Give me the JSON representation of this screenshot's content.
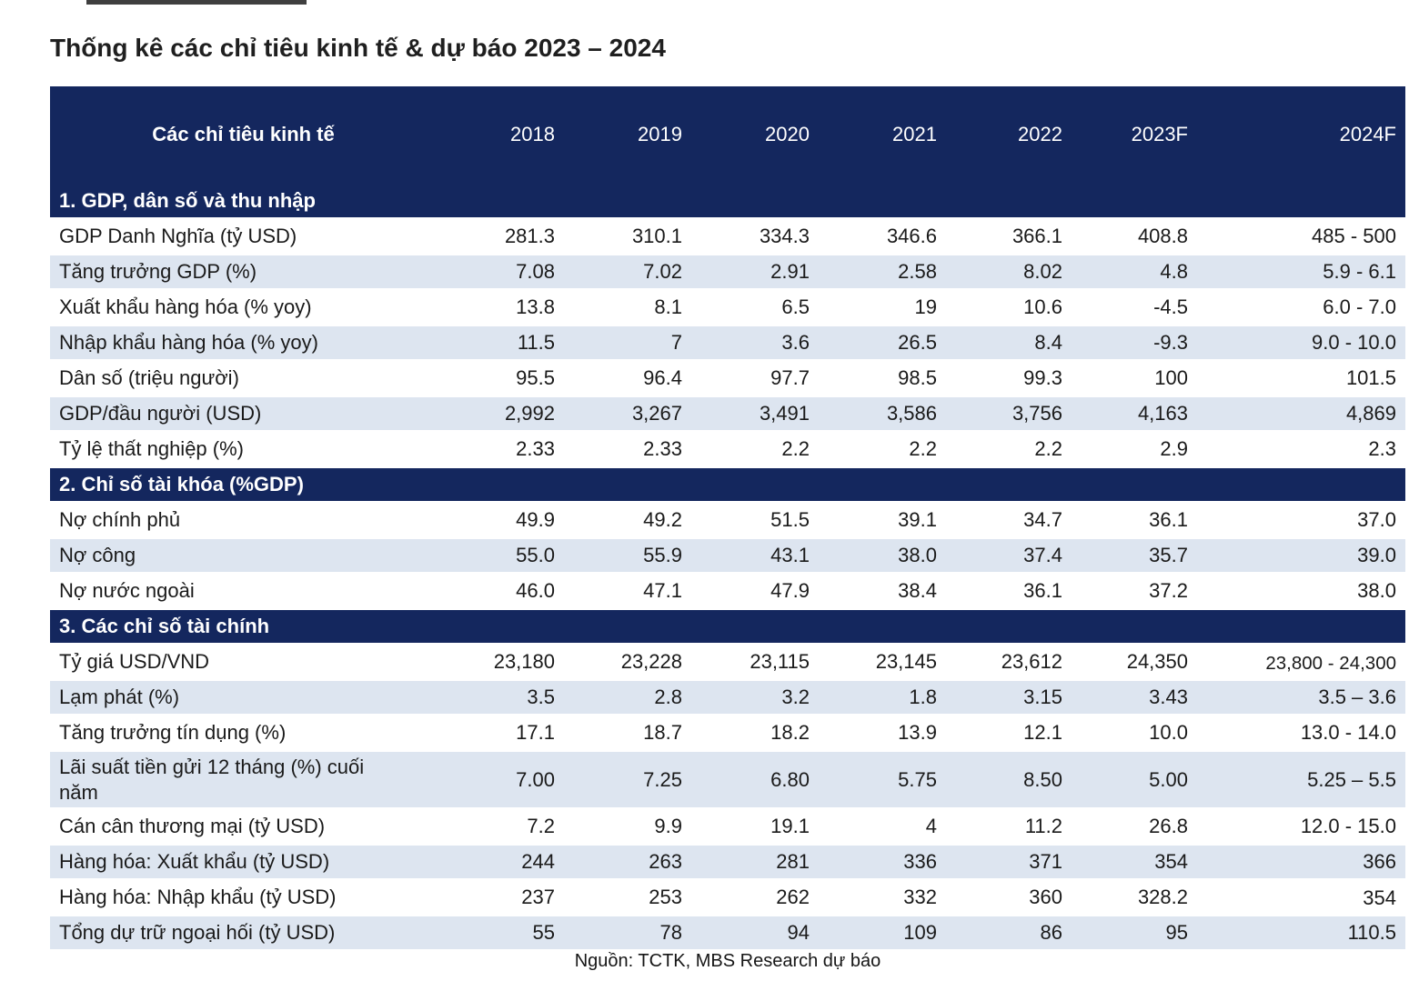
{
  "page": {
    "title": "Thống kê các chỉ tiêu kinh tế & dự báo 2023 – 2024",
    "source_note": "Nguồn: TCTK, MBS Research dự báo"
  },
  "colors": {
    "header_bg": "#14275E",
    "alt_row_bg": "#DDE5F0",
    "header_text": "#FFFFFF",
    "body_text": "#1A1A1A"
  },
  "table": {
    "columns": [
      "Các chỉ tiêu kinh tế",
      "2018",
      "2019",
      "2020",
      "2021",
      "2022",
      "2023F",
      "2024F"
    ],
    "sections": [
      {
        "title": "1. GDP, dân số và thu nhập",
        "rows": [
          {
            "label": "GDP Danh Nghĩa (tỷ USD)",
            "values": [
              "281.3",
              "310.1",
              "334.3",
              "346.6",
              "366.1",
              "408.8",
              "485 - 500"
            ]
          },
          {
            "label": "Tăng trưởng GDP (%)",
            "values": [
              "7.08",
              "7.02",
              "2.91",
              "2.58",
              "8.02",
              "4.8",
              "5.9 - 6.1"
            ]
          },
          {
            "label": "Xuất khẩu hàng hóa (% yoy)",
            "values": [
              "13.8",
              "8.1",
              "6.5",
              "19",
              "10.6",
              "-4.5",
              "6.0 - 7.0"
            ]
          },
          {
            "label": "Nhập khẩu hàng hóa (% yoy)",
            "values": [
              "11.5",
              "7",
              "3.6",
              "26.5",
              "8.4",
              "-9.3",
              "9.0 - 10.0"
            ]
          },
          {
            "label": "Dân số (triệu người)",
            "values": [
              "95.5",
              "96.4",
              "97.7",
              "98.5",
              "99.3",
              "100",
              "101.5"
            ]
          },
          {
            "label": "GDP/đầu người (USD)",
            "values": [
              "2,992",
              "3,267",
              "3,491",
              "3,586",
              "3,756",
              "4,163",
              "4,869"
            ]
          },
          {
            "label": "Tỷ lệ thất nghiệp (%)",
            "values": [
              "2.33",
              "2.33",
              "2.2",
              "2.2",
              "2.2",
              "2.9",
              "2.3"
            ]
          }
        ]
      },
      {
        "title": "2. Chỉ số tài khóa (%GDP)",
        "rows": [
          {
            "label": "Nợ chính phủ",
            "values": [
              "49.9",
              "49.2",
              "51.5",
              "39.1",
              "34.7",
              "36.1",
              "37.0"
            ]
          },
          {
            "label": "Nợ công",
            "values": [
              "55.0",
              "55.9",
              "43.1",
              "38.0",
              "37.4",
              "35.7",
              "39.0"
            ]
          },
          {
            "label": "Nợ nước ngoài",
            "values": [
              "46.0",
              "47.1",
              "47.9",
              "38.4",
              "36.1",
              "37.2",
              "38.0"
            ]
          }
        ]
      },
      {
        "title": "3. Các chỉ số tài chính",
        "rows": [
          {
            "label": "Tỷ giá USD/VND",
            "values": [
              "23,180",
              "23,228",
              "23,115",
              "23,145",
              "23,612",
              "24,350",
              "23,800 - 24,300"
            ]
          },
          {
            "label": "Lạm phát (%)",
            "values": [
              "3.5",
              "2.8",
              "3.2",
              "1.8",
              "3.15",
              "3.43",
              "3.5 – 3.6"
            ]
          },
          {
            "label": "Tăng trưởng tín dụng (%)",
            "values": [
              "17.1",
              "18.7",
              "18.2",
              "13.9",
              "12.1",
              "10.0",
              "13.0 - 14.0"
            ]
          },
          {
            "label": "Lãi suất tiền gửi 12 tháng (%) cuối\nnăm",
            "values": [
              "7.00",
              "7.25",
              "6.80",
              "5.75",
              "8.50",
              "5.00",
              "5.25 – 5.5"
            ]
          },
          {
            "label": "Cán cân thương mại (tỷ USD)",
            "values": [
              "7.2",
              "9.9",
              "19.1",
              "4",
              "11.2",
              "26.8",
              "12.0 - 15.0"
            ]
          },
          {
            "label": "Hàng hóa: Xuất khẩu (tỷ USD)",
            "values": [
              "244",
              "263",
              "281",
              "336",
              "371",
              "354",
              "366"
            ]
          },
          {
            "label": "Hàng hóa: Nhập khẩu (tỷ USD)",
            "values": [
              "237",
              "253",
              "262",
              "332",
              "360",
              "328.2",
              "354"
            ]
          },
          {
            "label": "Tổng dự trữ ngoại hối (tỷ USD)",
            "values": [
              "55",
              "78",
              "94",
              "109",
              "86",
              "95",
              "110.5"
            ]
          }
        ]
      }
    ]
  }
}
